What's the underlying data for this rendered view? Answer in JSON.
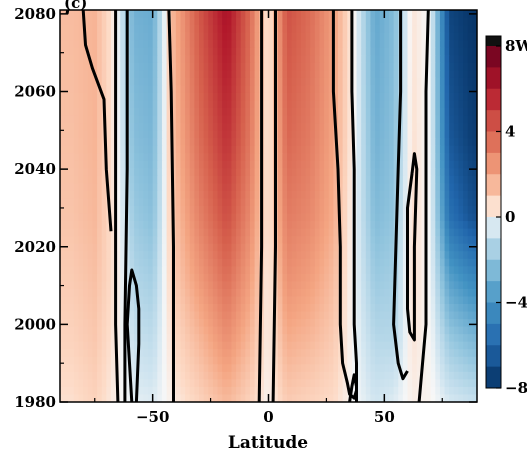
{
  "chart_data": {
    "type": "heatmap",
    "title": "",
    "panel_label": "(c)",
    "xlabel": "Latitude",
    "ylabel": "",
    "xlim": [
      -90,
      90
    ],
    "ylim": [
      1980,
      2081
    ],
    "xticks": [
      -50,
      0,
      50
    ],
    "xtick_labels": [
      "−50",
      "0",
      "50"
    ],
    "yticks": [
      1980,
      2000,
      2020,
      2040,
      2060,
      2080
    ],
    "ytick_labels": [
      "1980",
      "2000",
      "2020",
      "2040",
      "2060",
      "2080"
    ],
    "colorbar": {
      "min": -8,
      "max": 8,
      "ticks": [
        -8,
        -4,
        0,
        4,
        8
      ],
      "tick_labels": [
        "−8",
        "−4",
        "0",
        "4",
        "8W"
      ],
      "colors_negative": "#0b3d73",
      "colors_neutral": "#f7f7f7",
      "colors_positive": "#a50e1f",
      "top_color": "#111111"
    },
    "field_bands": [
      {
        "lat": -85,
        "values": [
          0.5,
          0.8,
          1.0,
          1.2,
          1.3,
          1.4
        ]
      },
      {
        "lat": -75,
        "values": [
          0.8,
          1.1,
          1.3,
          1.5,
          1.6,
          1.6
        ]
      },
      {
        "lat": -66,
        "values": [
          0.2,
          0.3,
          0.4,
          0.3,
          0.2,
          0.1
        ]
      },
      {
        "lat": -58,
        "values": [
          -0.3,
          -0.8,
          -1.3,
          -1.8,
          -2.3,
          -2.8
        ]
      },
      {
        "lat": -50,
        "values": [
          -0.4,
          -1.0,
          -1.6,
          -2.2,
          -2.6,
          -3.0
        ]
      },
      {
        "lat": -42,
        "values": [
          0.2,
          0.5,
          0.8,
          1.0,
          1.2,
          1.4
        ]
      },
      {
        "lat": -30,
        "values": [
          0.8,
          1.5,
          2.3,
          3.0,
          3.6,
          4.2
        ]
      },
      {
        "lat": -18,
        "values": [
          1.5,
          2.6,
          3.6,
          4.5,
          5.3,
          6.3
        ]
      },
      {
        "lat": -8,
        "values": [
          0.8,
          1.5,
          2.2,
          2.8,
          3.3,
          3.7
        ]
      },
      {
        "lat": 0,
        "values": [
          0.1,
          0.2,
          0.2,
          0.3,
          0.2,
          0.2
        ]
      },
      {
        "lat": 8,
        "values": [
          1.0,
          1.8,
          2.6,
          3.2,
          3.8,
          4.4
        ]
      },
      {
        "lat": 18,
        "values": [
          0.8,
          1.5,
          2.2,
          2.8,
          3.2,
          3.6
        ]
      },
      {
        "lat": 28,
        "values": [
          0.6,
          1.0,
          1.4,
          1.8,
          2.0,
          2.2
        ]
      },
      {
        "lat": 38,
        "values": [
          -0.1,
          -0.2,
          -0.3,
          -0.3,
          -0.2,
          -0.2
        ]
      },
      {
        "lat": 46,
        "values": [
          -0.6,
          -1.2,
          -1.8,
          -2.4,
          -2.8,
          -3.2
        ]
      },
      {
        "lat": 54,
        "values": [
          -0.4,
          -1.2,
          -1.6,
          -2.0,
          -2.2,
          -2.4
        ]
      },
      {
        "lat": 62,
        "values": [
          0.2,
          0.4,
          0.6,
          0.6,
          0.5,
          0.4
        ]
      },
      {
        "lat": 70,
        "values": [
          0.1,
          0.0,
          -0.1,
          -0.1,
          -0.1,
          -0.1
        ]
      },
      {
        "lat": 78,
        "values": [
          -0.5,
          -1.8,
          -3.5,
          -5.5,
          -6.5,
          -7.2
        ]
      },
      {
        "lat": 88,
        "values": [
          -0.8,
          -2.5,
          -4.5,
          -6.8,
          -7.5,
          -7.8
        ]
      }
    ],
    "field_years": [
      1980,
      1996,
      2012,
      2028,
      2048,
      2080
    ],
    "zero_contours": [
      [
        [
          -87,
          2080
        ],
        [
          -86,
          2083
        ]
      ],
      [
        [
          -80,
          2081
        ],
        [
          -79,
          2072
        ],
        [
          -76,
          2066
        ],
        [
          -71,
          2058
        ],
        [
          -70,
          2040
        ],
        [
          -68,
          2024
        ]
      ],
      [
        [
          -66,
          2081
        ],
        [
          -66,
          2040
        ],
        [
          -66,
          2000
        ],
        [
          -65,
          1980
        ]
      ],
      [
        [
          -62,
          1980
        ],
        [
          -62,
          2000
        ],
        [
          -61,
          2040
        ],
        [
          -61,
          2081
        ]
      ],
      [
        [
          -57,
          1980
        ],
        [
          -56,
          1995
        ],
        [
          -56,
          2004
        ],
        [
          -57,
          2010
        ],
        [
          -59,
          2014
        ],
        [
          -60,
          2010
        ],
        [
          -61,
          2000
        ],
        [
          -60,
          1990
        ],
        [
          -59,
          1980
        ]
      ],
      [
        [
          -41,
          1980
        ],
        [
          -41,
          2020
        ],
        [
          -42,
          2060
        ],
        [
          -43,
          2081
        ]
      ],
      [
        [
          -4,
          1980
        ],
        [
          -3,
          2020
        ],
        [
          -3,
          2060
        ],
        [
          -3,
          2081
        ]
      ],
      [
        [
          2,
          1980
        ],
        [
          3,
          2020
        ],
        [
          3,
          2060
        ],
        [
          3,
          2081
        ]
      ],
      [
        [
          28,
          2081
        ],
        [
          28,
          2060
        ],
        [
          30,
          2040
        ],
        [
          31,
          2020
        ],
        [
          31,
          2000
        ],
        [
          32,
          1990
        ],
        [
          34,
          1985
        ],
        [
          35,
          1982
        ],
        [
          37,
          1981
        ],
        [
          38,
          1983
        ],
        [
          38,
          1990
        ],
        [
          37,
          2000
        ],
        [
          37,
          2020
        ],
        [
          37,
          2040
        ],
        [
          36,
          2060
        ],
        [
          36,
          2081
        ]
      ],
      [
        [
          35,
          1980
        ],
        [
          36,
          1984
        ],
        [
          37,
          1987
        ],
        [
          38,
          1984
        ],
        [
          38,
          1980
        ]
      ],
      [
        [
          57,
          2081
        ],
        [
          57,
          2060
        ],
        [
          56,
          2040
        ],
        [
          55,
          2020
        ],
        [
          54,
          2000
        ],
        [
          56,
          1990
        ],
        [
          58,
          1986
        ],
        [
          60,
          1988
        ]
      ],
      [
        [
          62,
          2039
        ],
        [
          60,
          2030
        ],
        [
          60,
          2020
        ],
        [
          60,
          2004
        ],
        [
          61,
          1998
        ],
        [
          63,
          1996
        ],
        [
          63,
          2020
        ],
        [
          64,
          2040
        ],
        [
          63,
          2044
        ],
        [
          62,
          2039
        ]
      ],
      [
        [
          65,
          1980
        ],
        [
          68,
          2000
        ],
        [
          68,
          2040
        ],
        [
          68,
          2060
        ],
        [
          69,
          2081
        ]
      ]
    ]
  }
}
